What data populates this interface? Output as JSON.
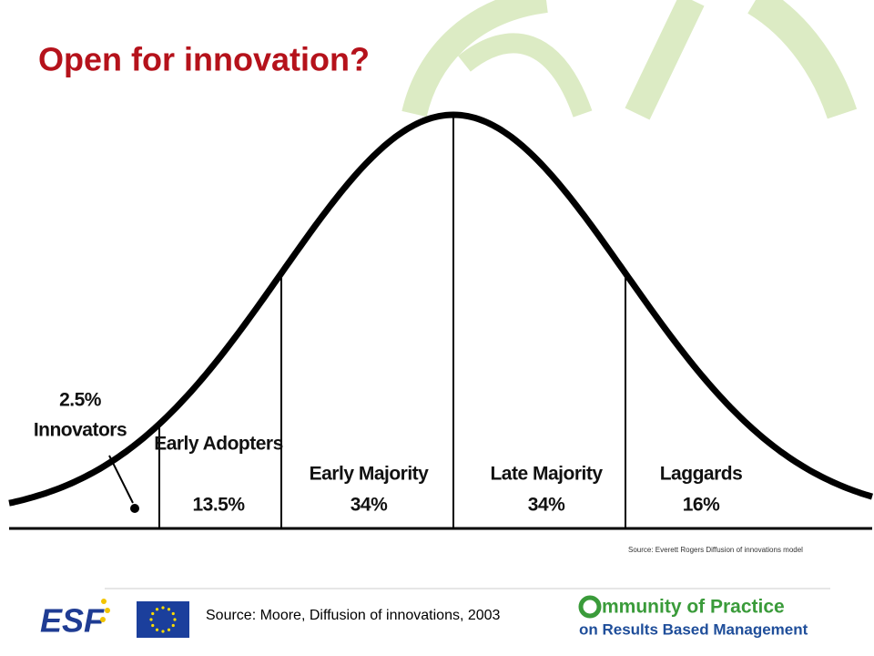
{
  "title": "Open for innovation?",
  "segments": [
    {
      "name": "Innovators",
      "share": "2.5%"
    },
    {
      "name": "Early Adopters",
      "share": "13.5%"
    },
    {
      "name": "Early Majority",
      "share": "34%"
    },
    {
      "name": "Late Majority",
      "share": "34%"
    },
    {
      "name": "Laggards",
      "share": "16%"
    }
  ],
  "figure_source": "Source: Everett Rogers Diffusion of innovations model",
  "footer": {
    "source": "Source: Moore, Diffusion of innovations, 2003",
    "esf_logo": "ESF",
    "cop_logo": {
      "line1": "mmunity of Practice",
      "line2": "on Results Based Management"
    }
  }
}
